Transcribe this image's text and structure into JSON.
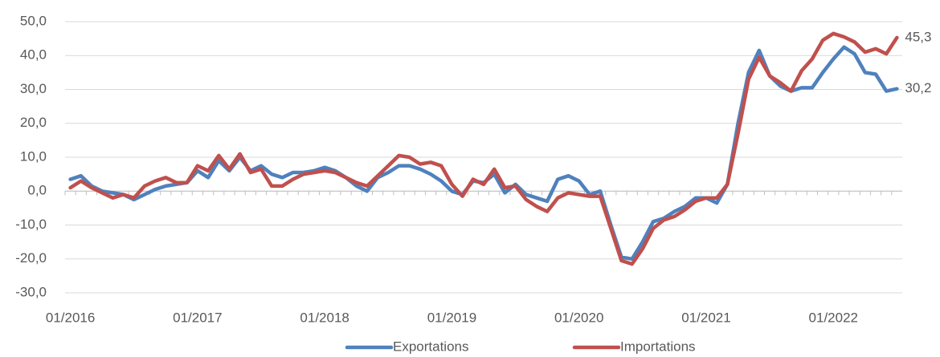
{
  "chart_data": {
    "type": "line",
    "categories": [
      "01/2016",
      null,
      null,
      null,
      null,
      null,
      null,
      null,
      null,
      null,
      null,
      null,
      "01/2017",
      null,
      null,
      null,
      null,
      null,
      null,
      null,
      null,
      null,
      null,
      null,
      "01/2018",
      null,
      null,
      null,
      null,
      null,
      null,
      null,
      null,
      null,
      null,
      null,
      "01/2019",
      null,
      null,
      null,
      null,
      null,
      null,
      null,
      null,
      null,
      null,
      null,
      "01/2020",
      null,
      null,
      null,
      null,
      null,
      null,
      null,
      null,
      null,
      null,
      null,
      "01/2021",
      null,
      null,
      null,
      null,
      null,
      null,
      null,
      null,
      null,
      null,
      null,
      "01/2022",
      null,
      null,
      null,
      null,
      null,
      null
    ],
    "series": [
      {
        "name": "Exportations",
        "color": "#4f81bd",
        "values": [
          3.5,
          4.5,
          1.5,
          0,
          -0.5,
          -1,
          -2.5,
          -1,
          0.5,
          1.5,
          2,
          2.5,
          6,
          4,
          9,
          6,
          10,
          6,
          7.5,
          5,
          4,
          5.5,
          5.5,
          6,
          7,
          6,
          4,
          1.5,
          0,
          4,
          5.5,
          7.5,
          7.5,
          6.5,
          5,
          3,
          0,
          -1,
          3,
          2.5,
          5,
          -0.5,
          2,
          -1,
          -2,
          -3,
          3.5,
          4.5,
          3,
          -1,
          0,
          -10,
          -19.5,
          -20,
          -15,
          -9,
          -8,
          -6,
          -4.5,
          -2,
          -2,
          -3.5,
          2,
          20,
          35,
          41.5,
          34,
          31,
          29.5,
          30.5,
          30.5,
          35,
          39,
          42.5,
          40.5,
          35,
          34.5,
          29.5,
          30.2
        ],
        "value_labels": [
          null,
          null,
          null,
          null,
          null,
          null,
          null,
          null,
          null,
          null,
          null,
          null,
          null,
          null,
          null,
          null,
          null,
          null,
          null,
          null,
          null,
          null,
          null,
          null,
          null,
          null,
          null,
          null,
          null,
          null,
          null,
          null,
          null,
          null,
          null,
          null,
          null,
          null,
          null,
          null,
          null,
          null,
          null,
          null,
          null,
          null,
          null,
          null,
          null,
          null,
          null,
          null,
          null,
          null,
          null,
          null,
          null,
          null,
          null,
          null,
          null,
          null,
          null,
          null,
          null,
          null,
          null,
          null,
          null,
          null,
          null,
          null,
          null,
          null,
          null,
          null,
          null,
          null,
          "30,2"
        ]
      },
      {
        "name": "Importations",
        "color": "#c0504d",
        "values": [
          1,
          3,
          1,
          -0.5,
          -2,
          -1,
          -2,
          1.5,
          3,
          4,
          2.5,
          2.5,
          7.5,
          6,
          10.5,
          6.5,
          11,
          5.5,
          6.5,
          1.5,
          1.5,
          3.5,
          5,
          5.5,
          6,
          5.5,
          4,
          2.5,
          1.5,
          4.5,
          7.5,
          10.5,
          10,
          8,
          8.5,
          7.5,
          2,
          -1.5,
          3.5,
          2,
          6.5,
          1,
          1.5,
          -2.5,
          -4.5,
          -6,
          -2,
          -0.5,
          -1,
          -1.5,
          -1.5,
          -11,
          -20.5,
          -21.5,
          -17,
          -11,
          -8.5,
          -7.5,
          -5.5,
          -3,
          -2,
          -2,
          2,
          17,
          33,
          39.5,
          34,
          32,
          29.5,
          35.5,
          39,
          44.5,
          46.5,
          45.5,
          44,
          41,
          42,
          40.5,
          45.3
        ],
        "value_labels": [
          null,
          null,
          null,
          null,
          null,
          null,
          null,
          null,
          null,
          null,
          null,
          null,
          null,
          null,
          null,
          null,
          null,
          null,
          null,
          null,
          null,
          null,
          null,
          null,
          null,
          null,
          null,
          null,
          null,
          null,
          null,
          null,
          null,
          null,
          null,
          null,
          null,
          null,
          null,
          null,
          null,
          null,
          null,
          null,
          null,
          null,
          null,
          null,
          null,
          null,
          null,
          null,
          null,
          null,
          null,
          null,
          null,
          null,
          null,
          null,
          null,
          null,
          null,
          null,
          null,
          null,
          null,
          null,
          null,
          null,
          null,
          null,
          null,
          null,
          null,
          null,
          null,
          null,
          "45,3"
        ]
      }
    ],
    "ylim": [
      -30,
      50
    ],
    "yticks": [
      {
        "value": -30,
        "label": "-30,0"
      },
      {
        "value": -20,
        "label": "-20,0"
      },
      {
        "value": -10,
        "label": "-10,0"
      },
      {
        "value": 0,
        "label": "0,0"
      },
      {
        "value": 10,
        "label": "10,0"
      },
      {
        "value": 20,
        "label": "20,0"
      },
      {
        "value": 30,
        "label": "30,0"
      },
      {
        "value": 40,
        "label": "40,0"
      },
      {
        "value": 50,
        "label": "50,0"
      }
    ],
    "grid": true,
    "legend": "bottom"
  }
}
